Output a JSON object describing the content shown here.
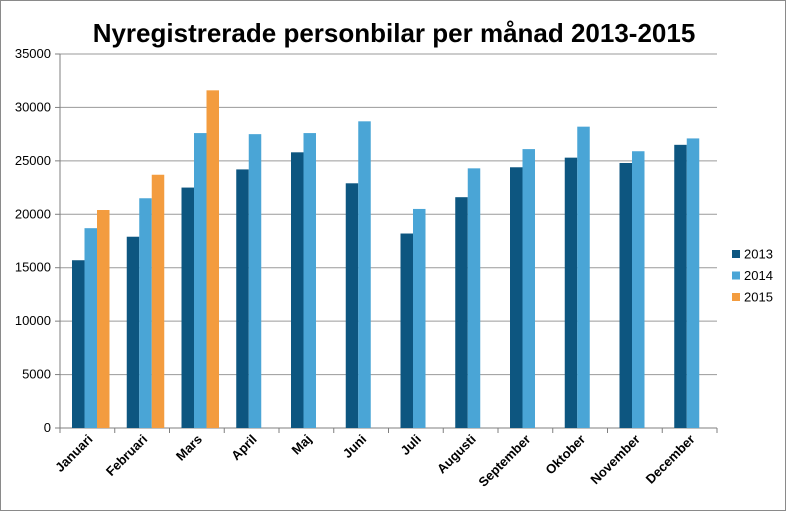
{
  "chart_data": {
    "type": "bar",
    "title": "Nyregistrerade personbilar per månad 2013-2015",
    "xlabel": "",
    "ylabel": "",
    "ylim": [
      0,
      35000
    ],
    "yticks": [
      0,
      5000,
      10000,
      15000,
      20000,
      25000,
      30000,
      35000
    ],
    "grid": true,
    "legend_position": "right",
    "categories": [
      "Januari",
      "Februari",
      "Mars",
      "April",
      "Maj",
      "Juni",
      "Juli",
      "Augusti",
      "September",
      "Oktober",
      "November",
      "December"
    ],
    "series": [
      {
        "name": "2013",
        "color": "#0d5680",
        "values": [
          15700,
          17900,
          22500,
          24200,
          25800,
          22900,
          18200,
          21600,
          24400,
          25300,
          24800,
          26500
        ]
      },
      {
        "name": "2014",
        "color": "#4aa5d6",
        "values": [
          18700,
          21500,
          27600,
          27500,
          27600,
          28700,
          20500,
          24300,
          26100,
          28200,
          25900,
          27100
        ]
      },
      {
        "name": "2015",
        "color": "#f39c3f",
        "values": [
          20400,
          23700,
          31600,
          null,
          null,
          null,
          null,
          null,
          null,
          null,
          null,
          null
        ]
      }
    ]
  }
}
